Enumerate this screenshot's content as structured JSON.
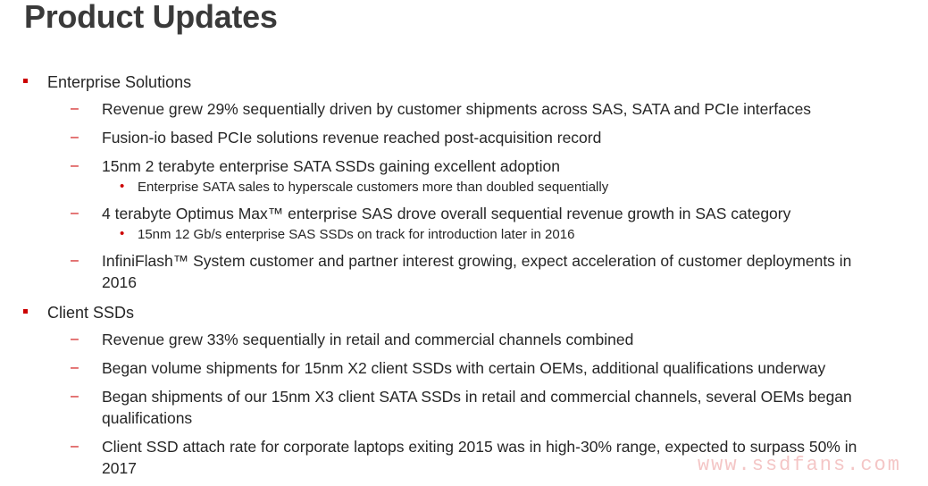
{
  "title": "Product Updates",
  "sections": [
    {
      "label": "Enterprise Solutions",
      "items": [
        {
          "text": "Revenue grew 29% sequentially driven by customer shipments across SAS, SATA and PCIe interfaces"
        },
        {
          "text": "Fusion-io based PCIe solutions revenue reached post-acquisition record"
        },
        {
          "text": "15nm 2 terabyte enterprise SATA SSDs gaining excellent adoption",
          "sub": "Enterprise SATA sales to hyperscale customers more than doubled sequentially"
        },
        {
          "text": "4 terabyte Optimus Max™ enterprise SAS drove overall sequential revenue growth in SAS category",
          "sub": "15nm 12 Gb/s enterprise SAS SSDs on track for introduction later in 2016"
        },
        {
          "text": "InfiniFlash™ System customer and partner interest growing, expect acceleration of customer deployments in 2016"
        }
      ]
    },
    {
      "label": "Client SSDs",
      "items": [
        {
          "text": "Revenue grew 33% sequentially in retail and commercial channels combined"
        },
        {
          "text": "Began volume shipments for 15nm X2 client SSDs with certain OEMs, additional qualifications underway"
        },
        {
          "text": "Began shipments of our 15nm X3 client SATA SSDs in retail and commercial channels, several OEMs began qualifications"
        },
        {
          "text": "Client SSD attach rate for corporate laptops exiting 2015 was in high-30% range, expected to surpass 50% in 2017"
        }
      ]
    }
  ],
  "markers": {
    "level1": "■",
    "level2": "–",
    "level3": "•"
  },
  "watermark": "www.ssdfans.com",
  "colors": {
    "accent": "#cc0000",
    "text": "#262626",
    "title": "#3a3a3a"
  }
}
